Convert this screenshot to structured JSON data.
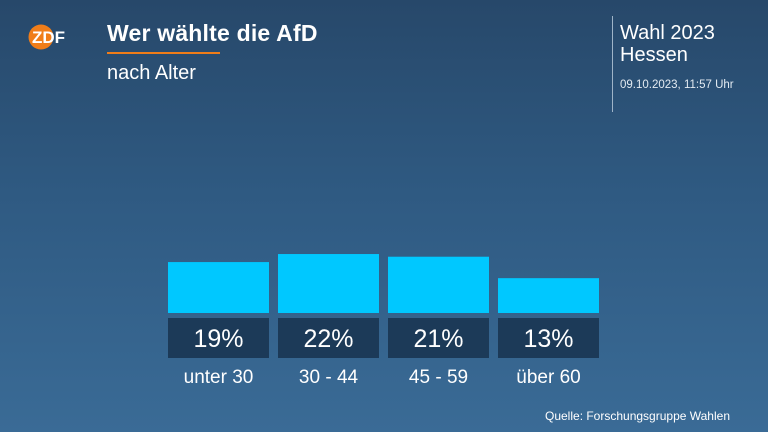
{
  "header": {
    "logo_text": "ZDF",
    "title": "Wer wählte die AfD",
    "subtitle": "nach Alter"
  },
  "meta": {
    "election_line1": "Wahl 2023",
    "election_line2": "Hessen",
    "timestamp": "09.10.2023, 11:57 Uhr"
  },
  "colors": {
    "bar": "#00c8ff",
    "label_box": "#1c3a58",
    "accent": "#f07d19"
  },
  "chart_data": {
    "type": "bar",
    "title": "Wer wählte die AfD",
    "subtitle": "nach Alter",
    "categories": [
      "unter 30",
      "30 - 44",
      "45 - 59",
      "über 60"
    ],
    "values": [
      19,
      22,
      21,
      13
    ],
    "value_labels": [
      "19%",
      "22%",
      "21%",
      "13%"
    ],
    "unit": "%",
    "grid": false,
    "legend": "none"
  },
  "footer": {
    "source": "Quelle: Forschungsgruppe Wahlen"
  }
}
